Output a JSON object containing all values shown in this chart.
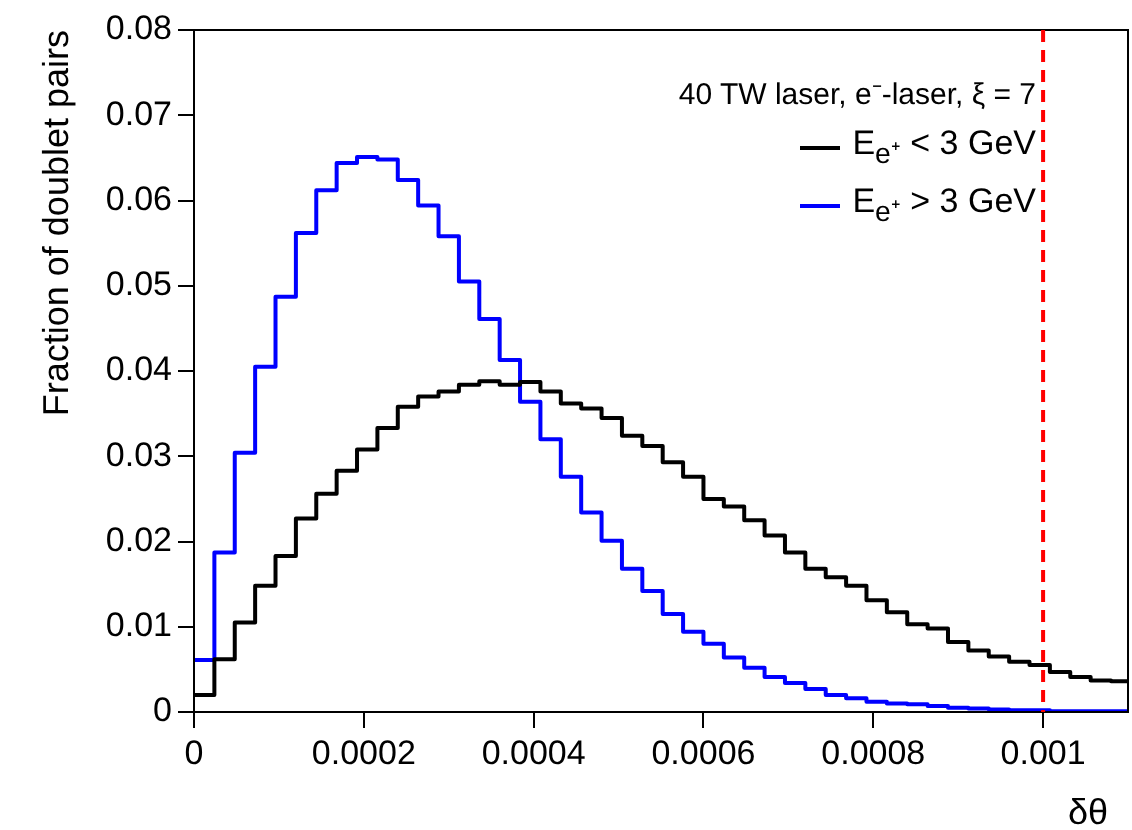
{
  "chart_data": {
    "type": "histogram",
    "xlabel": "δθ",
    "ylabel": "Fraction of doublet pairs",
    "legend_title": "40 TW laser, e⁻-laser, ξ = 7",
    "legend": "top right",
    "grid": false,
    "bins": [
      0,
      2.4e-05,
      4.8e-05,
      7.2e-05,
      9.6e-05,
      0.00012,
      0.000144,
      0.000168,
      0.000192,
      0.000216,
      0.00024,
      0.000264,
      0.000288,
      0.000312,
      0.000336,
      0.00036,
      0.000384,
      0.000408,
      0.000432,
      0.000456,
      0.00048,
      0.000504,
      0.000528,
      0.000552,
      0.000576,
      0.0006,
      0.000624,
      0.000648,
      0.000672,
      0.000696,
      0.00072,
      0.000744,
      0.000768,
      0.000792,
      0.000816,
      0.00084,
      0.000864,
      0.000888,
      0.000912,
      0.000936,
      0.00096,
      0.000984,
      0.001008,
      0.001032,
      0.001056,
      0.00108,
      0.0011
    ],
    "series": [
      {
        "name": "E$_{e⁺}$ < 3 GeV",
        "color": "#000000",
        "values": [
          0.002,
          0.0062,
          0.0105,
          0.0148,
          0.0183,
          0.0227,
          0.0256,
          0.0283,
          0.0308,
          0.0333,
          0.0358,
          0.037,
          0.0376,
          0.0384,
          0.0388,
          0.0384,
          0.0387,
          0.0376,
          0.0362,
          0.0356,
          0.0345,
          0.0324,
          0.0312,
          0.0293,
          0.0276,
          0.025,
          0.0241,
          0.0225,
          0.0207,
          0.0187,
          0.0168,
          0.0158,
          0.0148,
          0.0131,
          0.0117,
          0.0103,
          0.0098,
          0.0082,
          0.0072,
          0.0065,
          0.0059,
          0.0055,
          0.0047,
          0.0041,
          0.0037,
          0.0036
        ]
      },
      {
        "name": "E$_{e⁺}$ > 3 GeV",
        "color": "#0000ff",
        "values": [
          0.0061,
          0.0187,
          0.0304,
          0.0405,
          0.0487,
          0.0562,
          0.0612,
          0.0644,
          0.0651,
          0.0648,
          0.0624,
          0.0594,
          0.0558,
          0.0505,
          0.0461,
          0.0413,
          0.0364,
          0.032,
          0.0276,
          0.0234,
          0.0201,
          0.0168,
          0.0142,
          0.0115,
          0.0094,
          0.008,
          0.0064,
          0.0052,
          0.0041,
          0.0034,
          0.0027,
          0.002,
          0.0016,
          0.0012,
          0.001,
          0.0009,
          0.0007,
          0.0005,
          0.0004,
          0.0003,
          0.0002,
          0.0002,
          0.0001,
          0.0001,
          0.0001,
          0.0001
        ]
      }
    ],
    "xlim": [
      0,
      0.0011
    ],
    "xticks": [
      0,
      0.0002,
      0.0004,
      0.0006,
      0.0008,
      0.001
    ],
    "ylim": [
      0,
      0.08
    ],
    "yticks": [
      0,
      0.01,
      0.02,
      0.03,
      0.04,
      0.05,
      0.06,
      0.07,
      0.08
    ],
    "ref_lines": [
      {
        "axis": "x",
        "value": 0.001,
        "color": "#ff0000",
        "line_style": "dashed"
      }
    ]
  }
}
